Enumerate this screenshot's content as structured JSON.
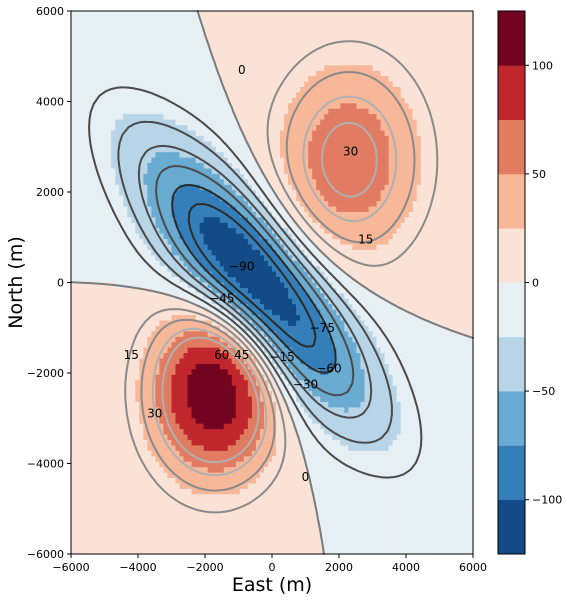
{
  "chart_data": {
    "type": "filled-contour",
    "xlabel": "East (m)",
    "ylabel": "North (m)",
    "xlim": [
      -6000,
      6000
    ],
    "ylim": [
      -6000,
      6000
    ],
    "x_ticks": [
      -6000,
      -4000,
      -2000,
      0,
      2000,
      4000,
      6000
    ],
    "y_ticks": [
      -6000,
      -4000,
      -2000,
      0,
      2000,
      4000,
      6000
    ],
    "x_tick_labels": [
      "−6000",
      "−4000",
      "−2000",
      "0",
      "2000",
      "4000",
      "6000"
    ],
    "y_tick_labels": [
      "−6000",
      "−4000",
      "−2000",
      "0",
      "2000",
      "4000",
      "6000"
    ],
    "colorbar": {
      "levels": [
        -125,
        -100,
        -75,
        -50,
        -25,
        0,
        25,
        50,
        75,
        100,
        125
      ],
      "colors": [
        "#134b87",
        "#347fb9",
        "#6aabd2",
        "#b8d5e8",
        "#e6eff4",
        "#fae3d6",
        "#f7b799",
        "#e17b62",
        "#c0272d",
        "#730421"
      ],
      "ticks": [
        -100,
        -50,
        0,
        50,
        100
      ],
      "tick_labels": [
        "−100",
        "−50",
        "0",
        "50",
        "100"
      ]
    },
    "field_model": [
      {
        "sign": "negative",
        "x": -500,
        "y": 0,
        "amplitude": 130,
        "sigma_major": 3000,
        "sigma_minor": 1000,
        "rotation_deg": -40
      },
      {
        "sign": "positive",
        "x": -1700,
        "y": -2400,
        "amplitude": 125,
        "sigma_major": 1300,
        "sigma_minor": 1300,
        "rotation_deg": 0
      },
      {
        "sign": "positive",
        "x": 2300,
        "y": 2700,
        "amplitude": 70,
        "sigma_major": 1500,
        "sigma_minor": 1500,
        "rotation_deg": 0
      }
    ],
    "contour_levels": [
      -90,
      -75,
      -60,
      -45,
      -30,
      -15,
      0,
      15,
      30,
      45,
      60
    ],
    "contour_labels": [
      {
        "text": "0",
        "x": -900,
        "y": 4700
      },
      {
        "text": "30",
        "x": 2350,
        "y": 2900
      },
      {
        "text": "15",
        "x": 2800,
        "y": 950
      },
      {
        "text": "−90",
        "x": -900,
        "y": 350
      },
      {
        "text": "−45",
        "x": -1500,
        "y": -350
      },
      {
        "text": "−75",
        "x": 1500,
        "y": -1000
      },
      {
        "text": "−60",
        "x": 1700,
        "y": -1900
      },
      {
        "text": "−15",
        "x": 300,
        "y": -1650
      },
      {
        "text": "−30",
        "x": 1000,
        "y": -2250
      },
      {
        "text": "15",
        "x": -4200,
        "y": -1600
      },
      {
        "text": "60",
        "x": -1500,
        "y": -1600
      },
      {
        "text": "45",
        "x": -900,
        "y": -1600
      },
      {
        "text": "30",
        "x": -3500,
        "y": -2900
      },
      {
        "text": "0",
        "x": 1000,
        "y": -4300
      }
    ]
  }
}
